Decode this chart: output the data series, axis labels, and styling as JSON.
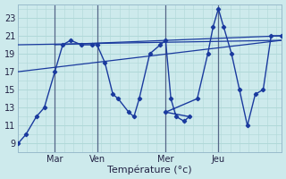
{
  "background_color": "#cdeaec",
  "grid_color": "#b0d8d8",
  "line_color": "#1a3a9e",
  "xlabel": "Température (°c)",
  "ylim": [
    8,
    24.5
  ],
  "yticks": [
    9,
    11,
    13,
    15,
    17,
    19,
    21,
    23
  ],
  "xlim": [
    0,
    100
  ],
  "day_positions": [
    14,
    30,
    56,
    76
  ],
  "day_labels": [
    "Mar",
    "Ven",
    "Mer",
    "Jeu"
  ],
  "vert_lines": [
    14,
    30,
    56,
    76
  ],
  "main_series": {
    "x": [
      0,
      3,
      7,
      10,
      14,
      17,
      20,
      24,
      28,
      30,
      33,
      36,
      38,
      42,
      44,
      46,
      50,
      54,
      56,
      58,
      60,
      63,
      65,
      56,
      68,
      72,
      74,
      76,
      78,
      81,
      84,
      87,
      90,
      93,
      96,
      100
    ],
    "y": [
      9,
      10,
      12,
      13,
      17,
      20,
      20.5,
      20,
      20,
      20,
      18,
      14.5,
      14,
      12.5,
      12,
      14,
      19,
      20,
      20.5,
      14,
      12,
      11.5,
      12,
      12.5,
      14,
      19,
      22,
      24,
      22,
      19,
      15,
      11,
      14.5,
      15,
      21,
      21
    ]
  },
  "trend_lines": [
    {
      "x": [
        0,
        100
      ],
      "y": [
        17,
        20.5
      ]
    },
    {
      "x": [
        0,
        100
      ],
      "y": [
        20,
        20.5
      ]
    },
    {
      "x": [
        14,
        100
      ],
      "y": [
        20,
        21
      ]
    }
  ]
}
